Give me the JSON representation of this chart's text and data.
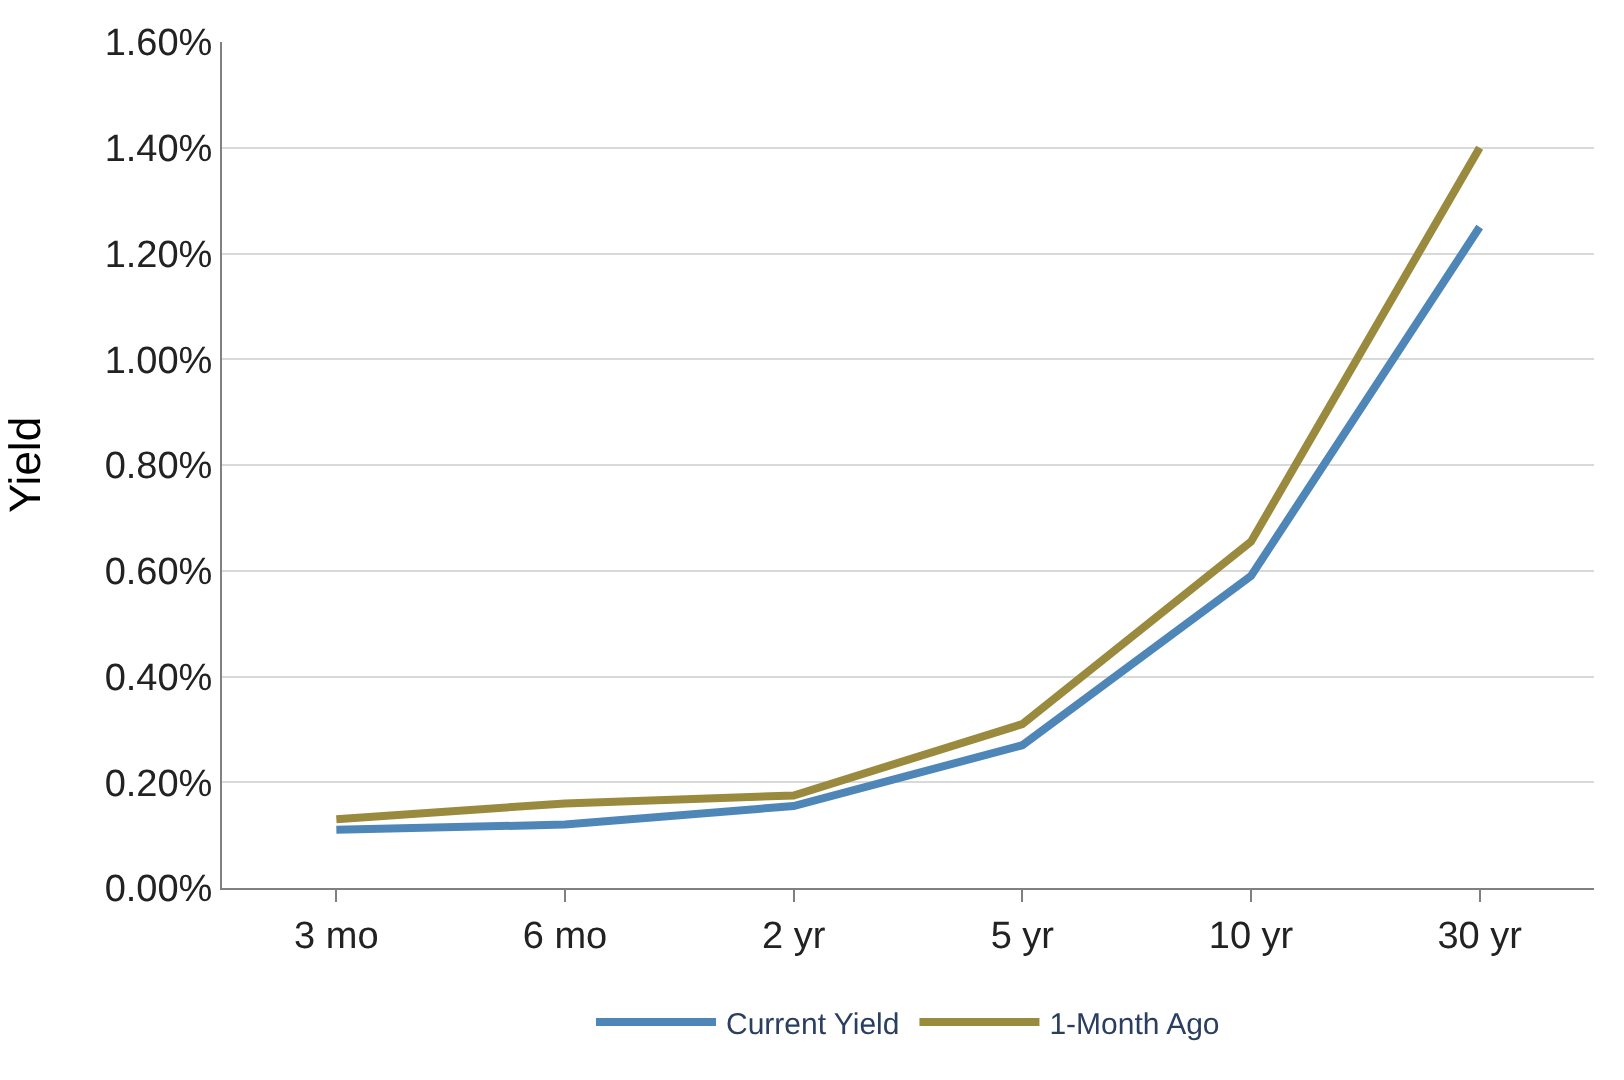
{
  "chart_data": {
    "type": "line",
    "ylabel": "Yield",
    "categories": [
      "3 mo",
      "6 mo",
      "2 yr",
      "5 yr",
      "10 yr",
      "30 yr"
    ],
    "series": [
      {
        "name": "Current Yield",
        "color": "#4f86b8",
        "values": [
          0.11,
          0.12,
          0.155,
          0.27,
          0.59,
          1.25
        ]
      },
      {
        "name": "1-Month Ago",
        "color": "#9a8a3e",
        "values": [
          0.13,
          0.16,
          0.175,
          0.31,
          0.655,
          1.4
        ]
      }
    ],
    "ylim": [
      0,
      1.6
    ],
    "yticks": [
      {
        "value": 0,
        "label": "0.00%"
      },
      {
        "value": 0.2,
        "label": "0.20%"
      },
      {
        "value": 0.4,
        "label": "0.40%"
      },
      {
        "value": 0.6,
        "label": "0.60%"
      },
      {
        "value": 0.8,
        "label": "0.80%"
      },
      {
        "value": 1.0,
        "label": "1.00%"
      },
      {
        "value": 1.2,
        "label": "1.20%"
      },
      {
        "value": 1.4,
        "label": "1.40%"
      },
      {
        "value": 1.6,
        "label": "1.60%"
      }
    ],
    "grid": "y",
    "legend": "bottom",
    "marker": "none",
    "line_style": "solid"
  }
}
